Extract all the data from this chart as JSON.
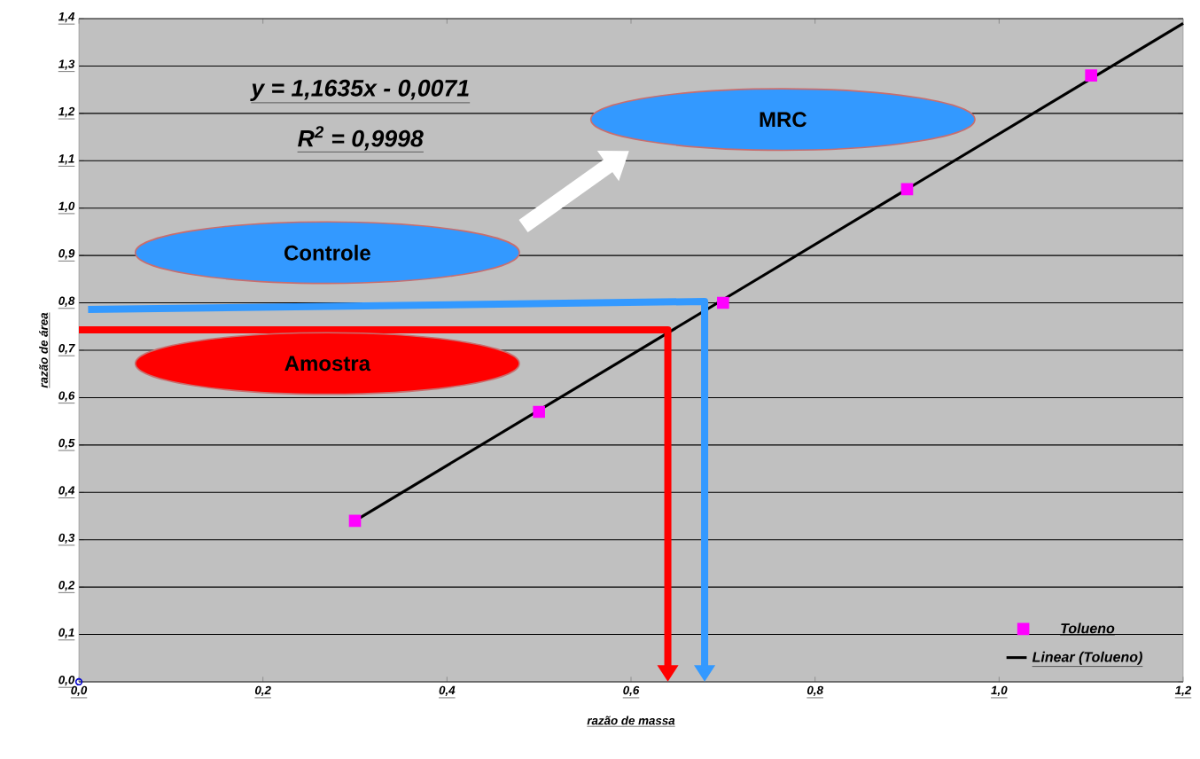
{
  "chart_data": {
    "type": "scatter",
    "xlabel": "razão de massa",
    "ylabel": "razão de área",
    "xlim": [
      0,
      1.2
    ],
    "ylim": [
      0,
      1.4
    ],
    "xticks": [
      {
        "value": 0,
        "label": "0,0"
      },
      {
        "value": 0.2,
        "label": "0,2"
      },
      {
        "value": 0.4,
        "label": "0,4"
      },
      {
        "value": 0.6,
        "label": "0,6"
      },
      {
        "value": 0.8,
        "label": "0,8"
      },
      {
        "value": 1.0,
        "label": "1,0"
      },
      {
        "value": 1.2,
        "label": "1,2"
      }
    ],
    "yticks": [
      {
        "value": 0,
        "label": "0,0"
      },
      {
        "value": 0.1,
        "label": "0,1"
      },
      {
        "value": 0.2,
        "label": "0,2"
      },
      {
        "value": 0.3,
        "label": "0,3"
      },
      {
        "value": 0.4,
        "label": "0,4"
      },
      {
        "value": 0.5,
        "label": "0,5"
      },
      {
        "value": 0.6,
        "label": "0,6"
      },
      {
        "value": 0.7,
        "label": "0,7"
      },
      {
        "value": 0.8,
        "label": "0,8"
      },
      {
        "value": 0.9,
        "label": "0,9"
      },
      {
        "value": 1.0,
        "label": "1,0"
      },
      {
        "value": 1.1,
        "label": "1,1"
      },
      {
        "value": 1.2,
        "label": "1,2"
      },
      {
        "value": 1.3,
        "label": "1,3"
      },
      {
        "value": 1.4,
        "label": "1,4"
      }
    ],
    "grid": "y",
    "legend": "bottom right",
    "series": [
      {
        "name": "Tolueno",
        "color": "#ff00ff",
        "marker": "square",
        "x": [
          0.3,
          0.5,
          0.7,
          0.9,
          1.1
        ],
        "values": [
          0.34,
          0.57,
          0.8,
          1.04,
          1.28
        ]
      },
      {
        "name": "Linear (Tolueno)",
        "type": "line",
        "color": "#000000",
        "marker": "none",
        "x": [
          0.3,
          1.2
        ],
        "values": [
          0.34,
          1.39
        ]
      },
      {
        "color": "#0000cc",
        "marker": "circle",
        "x": [
          0
        ],
        "values": [
          0
        ]
      }
    ],
    "annotations": [
      "y = 1,1635x - 0,0071",
      "R$^{2}$ = 0,9998",
      "MRC",
      "Controle",
      "Amostra"
    ]
  }
}
